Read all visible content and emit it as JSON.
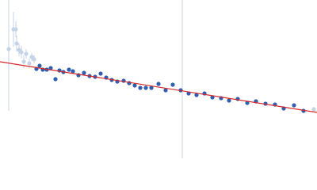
{
  "chart_data": {
    "type": "scatter",
    "xlim": [
      0,
      400
    ],
    "ylim": [
      0,
      200
    ],
    "series": [
      {
        "color": "#c5d3ea",
        "x": [
          11,
          17,
          20,
          21,
          24,
          27,
          30,
          33,
          37,
          40,
          43,
          396
        ],
        "values": [
          138,
          163,
          163,
          145,
          137,
          134,
          122,
          132,
          120,
          128,
          125,
          62
        ],
        "errors": [
          78,
          22,
          10,
          10,
          8,
          8,
          8,
          6,
          6,
          5,
          5,
          2
        ]
      },
      {
        "color": "#2f5fb3",
        "x": [
          46,
          50,
          54,
          59,
          64,
          70,
          75,
          80,
          87,
          92,
          99,
          106,
          113,
          120,
          127,
          134,
          141,
          148,
          156,
          163,
          170,
          177,
          184,
          191,
          200,
          209,
          218,
          228,
          238,
          248,
          258,
          268,
          279,
          289,
          300,
          312,
          323,
          335,
          347,
          358,
          371,
          383
        ],
        "values": [
          113,
          117,
          112,
          112,
          114,
          100,
          111,
          109,
          112,
          110,
          105,
          108,
          104,
          103,
          107,
          102,
          99,
          97,
          98,
          95,
          92,
          89,
          89,
          89,
          94,
          86,
          93,
          86,
          82,
          80,
          82,
          77,
          76,
          73,
          75,
          70,
          72,
          69,
          68,
          63,
          67,
          60
        ]
      }
    ],
    "fit": {
      "color": "#d62728",
      "x": [
        0,
        400
      ],
      "values": [
        122,
        58
      ]
    },
    "vline": {
      "color": "#c8d3e6",
      "x": 230
    }
  }
}
